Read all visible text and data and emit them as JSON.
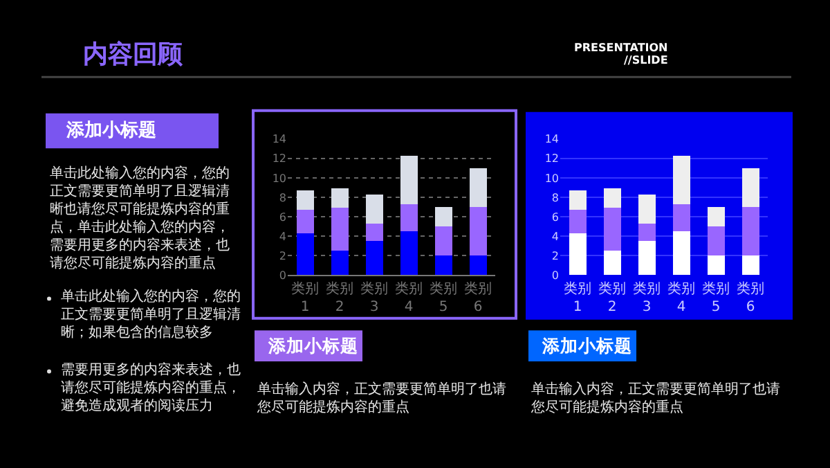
{
  "chart_data": [
    {
      "type": "other",
      "title": "内容回顾",
      "annotations": [
        "PRESENTATION",
        "//SLIDE",
        "添加小标题",
        "单击此处输入您的内容，您的正文需要更简单明了且逻辑清晰也请您尽可能提炼内容的重点，单击此处输入您的内容，需要用更多的内容来表述，也请您尽可能提炼内容的重点",
        "单击此处输入您的内容，您的正文需要更简单明了且逻辑清晰；如果包含的信息较多",
        "需要用更多的内容来表述，也请您尽可能提炼内容的重点，避免造成观者的阅读压力"
      ]
    },
    {
      "type": "bar",
      "stacked": true,
      "title": "添加小标题",
      "annotations": [
        "单击输入内容，正文需要更简单明了也请您尽可能提炼内容的重点"
      ],
      "categories": [
        "类别 1",
        "类别 2",
        "类别 3",
        "类别 4",
        "类别 5",
        "类别 6"
      ],
      "series": [
        {
          "color": "#0000ff",
          "values": [
            4.3,
            2.5,
            3.5,
            4.5,
            2.0,
            2.0
          ]
        },
        {
          "color": "#9966ff",
          "values": [
            2.4,
            4.4,
            1.8,
            2.8,
            3.0,
            5.0
          ]
        },
        {
          "color": "#d9dee8",
          "values": [
            2.0,
            2.0,
            3.0,
            5.0,
            2.0,
            4.0
          ]
        }
      ],
      "ylim": [
        0,
        14
      ],
      "yticks": [
        0,
        2,
        4,
        6,
        8,
        10,
        12,
        14
      ],
      "grid": "y"
    },
    {
      "type": "bar",
      "stacked": true,
      "title": "添加小标题",
      "annotations": [
        "单击输入内容，正文需要更简单明了也请您尽可能提炼内容的重点"
      ],
      "categories": [
        "类别 1",
        "类别 2",
        "类别 3",
        "类别 4",
        "类别 5",
        "类别 6"
      ],
      "series": [
        {
          "color": "#ffffff",
          "values": [
            4.3,
            2.5,
            3.5,
            4.5,
            2.0,
            2.0
          ]
        },
        {
          "color": "#9966ff",
          "values": [
            2.4,
            4.4,
            1.8,
            2.8,
            3.0,
            5.0
          ]
        },
        {
          "color": "#eeeeee",
          "values": [
            2.0,
            2.0,
            3.0,
            5.0,
            2.0,
            4.0
          ]
        }
      ],
      "ylim": [
        0,
        14
      ],
      "yticks": [
        0,
        2,
        4,
        6,
        8,
        10,
        12,
        14
      ],
      "grid": "y"
    }
  ]
}
